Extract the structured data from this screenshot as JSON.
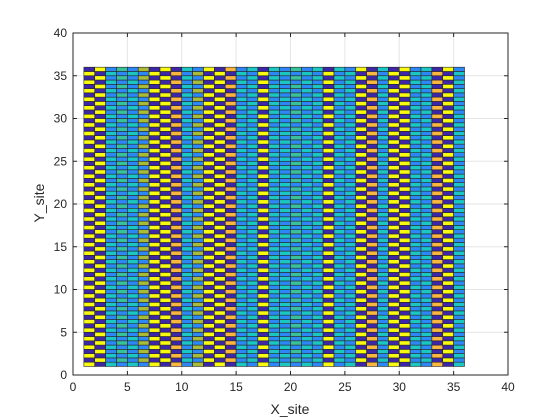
{
  "chart_data": {
    "type": "heatmap",
    "title": "",
    "xlabel": "X_site",
    "ylabel": "Y_site",
    "xlim": [
      0,
      40
    ],
    "ylim": [
      0,
      40
    ],
    "xticks": [
      0,
      5,
      10,
      15,
      20,
      25,
      30,
      35,
      40
    ],
    "yticks": [
      0,
      5,
      10,
      15,
      20,
      25,
      30,
      35,
      40
    ],
    "grid": true,
    "site_range": {
      "x": [
        1,
        36
      ],
      "y": [
        1,
        36
      ]
    },
    "colors": {
      "yellow": "#f9fb0e",
      "dark_blue": "#3e26a8",
      "blue": "#2e87f7",
      "cyan": "#1ac7c2",
      "teal": "#38c29a",
      "orange": "#fbb63e",
      "olive": "#a8bd35"
    },
    "column_pairs": [
      [
        "yellow",
        "dark_blue"
      ],
      [
        "yellow",
        "dark_blue"
      ],
      [
        "cyan",
        "blue"
      ],
      [
        "teal",
        "blue"
      ],
      [
        "cyan",
        "blue"
      ],
      [
        "olive",
        "blue"
      ],
      [
        "yellow",
        "dark_blue"
      ],
      [
        "yellow",
        "dark_blue"
      ],
      [
        "orange",
        "dark_blue"
      ],
      [
        "cyan",
        "blue"
      ],
      [
        "olive",
        "blue"
      ],
      [
        "yellow",
        "dark_blue"
      ],
      [
        "yellow",
        "dark_blue"
      ],
      [
        "orange",
        "dark_blue"
      ],
      [
        "cyan",
        "blue"
      ],
      [
        "cyan",
        "blue"
      ],
      [
        "yellow",
        "dark_blue"
      ],
      [
        "cyan",
        "blue"
      ],
      [
        "cyan",
        "blue"
      ],
      [
        "teal",
        "blue"
      ],
      [
        "cyan",
        "blue"
      ],
      [
        "cyan",
        "blue"
      ],
      [
        "yellow",
        "dark_blue"
      ],
      [
        "cyan",
        "blue"
      ],
      [
        "cyan",
        "blue"
      ],
      [
        "yellow",
        "dark_blue"
      ],
      [
        "orange",
        "dark_blue"
      ],
      [
        "cyan",
        "blue"
      ],
      [
        "yellow",
        "dark_blue"
      ],
      [
        "yellow",
        "dark_blue"
      ],
      [
        "cyan",
        "blue"
      ],
      [
        "cyan",
        "blue"
      ],
      [
        "orange",
        "dark_blue"
      ],
      [
        "yellow",
        "dark_blue"
      ],
      [
        "cyan",
        "blue"
      ]
    ]
  }
}
